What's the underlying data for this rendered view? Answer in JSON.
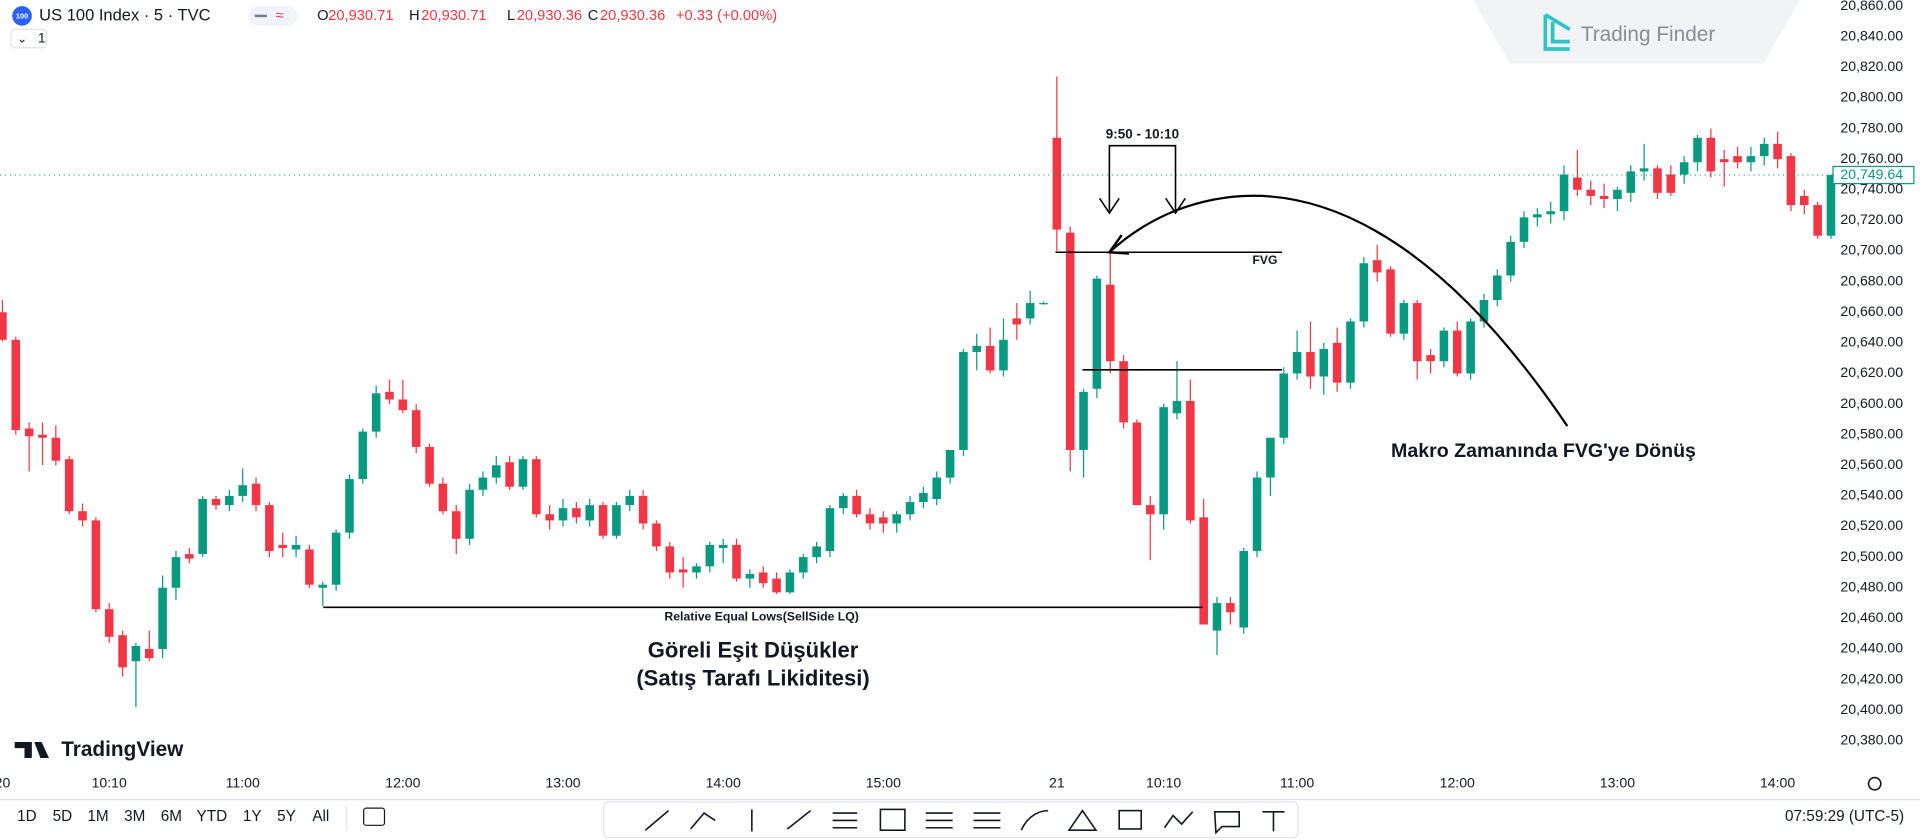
{
  "chart_data": {
    "type": "candlestick",
    "symbol": "US 100 Index · 5 · TVC",
    "interval": "1",
    "header": {
      "o_label": "O",
      "o": "20,930.71",
      "h_label": "H",
      "h": "20,930.71",
      "l_label": "L",
      "l": "20,930.36",
      "c_label": "C",
      "c": "20,930.36",
      "change": "+0.33 (+0.00%)"
    },
    "brand": "Trading Finder",
    "platform": "TradingView",
    "annotations": {
      "window": "9:50 - 10:10",
      "fvg": "FVG",
      "equal_lows": "Relative Equal Lows(SellSide LQ)",
      "equal_lows_tr_1": "Göreli Eşit Düşükler",
      "equal_lows_tr_2": "(Satış Tarafı Likiditesi)",
      "return": "Makro Zamanında FVG'ye Dönüş"
    },
    "ranges": [
      "1D",
      "5D",
      "1M",
      "3M",
      "6M",
      "YTD",
      "1Y",
      "5Y",
      "All"
    ],
    "clock": "07:59:29 (UTC-5)",
    "up_color": "#089981",
    "down_color": "#f23645",
    "grid": false,
    "last_price": {
      "value": 20749.64,
      "label": "20,749.64"
    },
    "ylim": [
      20364,
      20864
    ],
    "yticks": [
      {
        "value": 20860,
        "label": "20,860.00"
      },
      {
        "value": 20840,
        "label": "20,840.00"
      },
      {
        "value": 20820,
        "label": "20,820.00"
      },
      {
        "value": 20800,
        "label": "20,800.00"
      },
      {
        "value": 20780,
        "label": "20,780.00"
      },
      {
        "value": 20760,
        "label": "20,760.00"
      },
      {
        "value": 20740,
        "label": "20,740.00"
      },
      {
        "value": 20720,
        "label": "20,720.00"
      },
      {
        "value": 20700,
        "label": "20,700.00"
      },
      {
        "value": 20680,
        "label": "20,680.00"
      },
      {
        "value": 20660,
        "label": "20,660.00"
      },
      {
        "value": 20640,
        "label": "20,640.00"
      },
      {
        "value": 20620,
        "label": "20,620.00"
      },
      {
        "value": 20600,
        "label": "20,600.00"
      },
      {
        "value": 20580,
        "label": "20,580.00"
      },
      {
        "value": 20560,
        "label": "20,560.00"
      },
      {
        "value": 20540,
        "label": "20,540.00"
      },
      {
        "value": 20520,
        "label": "20,520.00"
      },
      {
        "value": 20500,
        "label": "20,500.00"
      },
      {
        "value": 20480,
        "label": "20,480.00"
      },
      {
        "value": 20460,
        "label": "20,460.00"
      },
      {
        "value": 20440,
        "label": "20,440.00"
      },
      {
        "value": 20420,
        "label": "20,420.00"
      },
      {
        "value": 20400,
        "label": "20,400.00"
      },
      {
        "value": 20380,
        "label": "20,380.00"
      }
    ],
    "categories": [
      "20",
      null,
      null,
      null,
      null,
      null,
      null,
      null,
      "10:10",
      null,
      null,
      null,
      null,
      null,
      null,
      null,
      null,
      null,
      "11:00",
      null,
      null,
      null,
      null,
      null,
      null,
      null,
      null,
      null,
      null,
      null,
      "12:00",
      null,
      null,
      null,
      null,
      null,
      null,
      null,
      null,
      null,
      null,
      null,
      "13:00",
      null,
      null,
      null,
      null,
      null,
      null,
      null,
      null,
      null,
      null,
      null,
      "14:00",
      null,
      null,
      null,
      null,
      null,
      null,
      null,
      null,
      null,
      null,
      null,
      "15:00",
      null,
      null,
      null,
      null,
      null,
      null,
      null,
      null,
      null,
      null,
      null,
      null,
      "21",
      null,
      null,
      null,
      null,
      null,
      null,
      null,
      "10:10",
      null,
      null,
      null,
      null,
      null,
      null,
      null,
      null,
      null,
      "11:00",
      null,
      null,
      null,
      null,
      null,
      null,
      null,
      null,
      null,
      null,
      null,
      "12:00",
      null,
      null,
      null,
      null,
      null,
      null,
      null,
      null,
      null,
      null,
      null,
      "13:00",
      null,
      null,
      null,
      null,
      null,
      null,
      null,
      null,
      null,
      null,
      null,
      "14:00",
      null,
      null,
      null,
      null
    ],
    "ohlc": [
      [
        20660,
        20668,
        20641,
        20642
      ],
      [
        20642,
        20644,
        20580,
        20583
      ],
      [
        20584,
        20588,
        20556,
        20579
      ],
      [
        20580,
        20588,
        20560,
        20578
      ],
      [
        20578,
        20586,
        20560,
        20563
      ],
      [
        20564,
        20566,
        20528,
        20530
      ],
      [
        20530,
        20535,
        20520,
        20524
      ],
      [
        20524,
        20526,
        20464,
        20466
      ],
      [
        20466,
        20470,
        20444,
        20448
      ],
      [
        20449,
        20452,
        20422,
        20428
      ],
      [
        20432,
        20444,
        20402,
        20442
      ],
      [
        20440,
        20452,
        20432,
        20434
      ],
      [
        20440,
        20488,
        20434,
        20480
      ],
      [
        20480,
        20504,
        20472,
        20500
      ],
      [
        20502,
        20506,
        20496,
        20499
      ],
      [
        20502,
        20540,
        20500,
        20538
      ],
      [
        20538,
        20540,
        20531,
        20534
      ],
      [
        20534,
        20544,
        20530,
        20540
      ],
      [
        20540,
        20558,
        20536,
        20547
      ],
      [
        20548,
        20552,
        20530,
        20534
      ],
      [
        20534,
        20536,
        20500,
        20504
      ],
      [
        20508,
        20516,
        20500,
        20506
      ],
      [
        20505,
        20514,
        20500,
        20508
      ],
      [
        20505,
        20508,
        20480,
        20482
      ],
      [
        20480,
        20484,
        20468,
        20482
      ],
      [
        20482,
        20518,
        20478,
        20516
      ],
      [
        20516,
        20554,
        20512,
        20551
      ],
      [
        20551,
        20584,
        20548,
        20582
      ],
      [
        20582,
        20612,
        20578,
        20607
      ],
      [
        20608,
        20616,
        20600,
        20603
      ],
      [
        20603,
        20616,
        20594,
        20596
      ],
      [
        20596,
        20600,
        20568,
        20572
      ],
      [
        20572,
        20574,
        20546,
        20548
      ],
      [
        20548,
        20552,
        20528,
        20530
      ],
      [
        20530,
        20534,
        20502,
        20512
      ],
      [
        20512,
        20548,
        20508,
        20544
      ],
      [
        20544,
        20556,
        20540,
        20552
      ],
      [
        20552,
        20566,
        20548,
        20560
      ],
      [
        20562,
        20566,
        20544,
        20546
      ],
      [
        20546,
        20566,
        20544,
        20564
      ],
      [
        20564,
        20566,
        20526,
        20528
      ],
      [
        20528,
        20534,
        20518,
        20524
      ],
      [
        20524,
        20538,
        20520,
        20532
      ],
      [
        20532,
        20536,
        20522,
        20526
      ],
      [
        20524,
        20538,
        20520,
        20534
      ],
      [
        20534,
        20536,
        20512,
        20514
      ],
      [
        20514,
        20536,
        20512,
        20534
      ],
      [
        20534,
        20544,
        20530,
        20540
      ],
      [
        20540,
        20544,
        20518,
        20522
      ],
      [
        20522,
        20524,
        20504,
        20507
      ],
      [
        20507,
        20510,
        20486,
        20490
      ],
      [
        20492,
        20500,
        20480,
        20490
      ],
      [
        20490,
        20496,
        20486,
        20494
      ],
      [
        20494,
        20510,
        20490,
        20508
      ],
      [
        20506,
        20512,
        20496,
        20508
      ],
      [
        20508,
        20512,
        20484,
        20486
      ],
      [
        20486,
        20492,
        20480,
        20489
      ],
      [
        20490,
        20494,
        20480,
        20483
      ],
      [
        20486,
        20490,
        20476,
        20477
      ],
      [
        20477,
        20492,
        20476,
        20490
      ],
      [
        20490,
        20502,
        20486,
        20500
      ],
      [
        20500,
        20510,
        20496,
        20507
      ],
      [
        20504,
        20534,
        20500,
        20532
      ],
      [
        20532,
        20542,
        20528,
        20540
      ],
      [
        20540,
        20544,
        20526,
        20528
      ],
      [
        20528,
        20532,
        20518,
        20522
      ],
      [
        20526,
        20530,
        20516,
        20522
      ],
      [
        20522,
        20530,
        20516,
        20528
      ],
      [
        20528,
        20540,
        20524,
        20536
      ],
      [
        20536,
        20546,
        20532,
        20542
      ],
      [
        20538,
        20556,
        20534,
        20552
      ],
      [
        20552,
        20570,
        20548,
        20570
      ],
      [
        20570,
        20636,
        20566,
        20634
      ],
      [
        20634,
        20646,
        20622,
        20638
      ],
      [
        20638,
        20650,
        20620,
        20622
      ],
      [
        20622,
        20656,
        20618,
        20642
      ],
      [
        20656,
        20666,
        20642,
        20652
      ],
      [
        20656,
        20674,
        20652,
        20666
      ],
      [
        20666,
        20667,
        20665,
        20666
      ],
      [
        20774,
        20814,
        20700,
        20714
      ],
      [
        20712,
        20716,
        20556,
        20570
      ],
      [
        20570,
        20610,
        20552,
        20608
      ],
      [
        20610,
        20684,
        20604,
        20682
      ],
      [
        20678,
        20700,
        20620,
        20628
      ],
      [
        20628,
        20632,
        20584,
        20588
      ],
      [
        20588,
        20590,
        20534,
        20534
      ],
      [
        20534,
        20540,
        20498,
        20528
      ],
      [
        20528,
        20600,
        20518,
        20598
      ],
      [
        20594,
        20628,
        20590,
        20602
      ],
      [
        20602,
        20616,
        20522,
        20524
      ],
      [
        20526,
        20538,
        20456,
        20456
      ],
      [
        20452,
        20474,
        20436,
        20470
      ],
      [
        20470,
        20474,
        20456,
        20464
      ],
      [
        20454,
        20506,
        20450,
        20504
      ],
      [
        20504,
        20556,
        20500,
        20552
      ],
      [
        20552,
        20578,
        20540,
        20578
      ],
      [
        20578,
        20624,
        20574,
        20620
      ],
      [
        20620,
        20648,
        20616,
        20634
      ],
      [
        20634,
        20654,
        20610,
        20618
      ],
      [
        20618,
        20640,
        20606,
        20636
      ],
      [
        20640,
        20650,
        20608,
        20614
      ],
      [
        20614,
        20656,
        20610,
        20654
      ],
      [
        20654,
        20696,
        20650,
        20692
      ],
      [
        20694,
        20704,
        20680,
        20686
      ],
      [
        20688,
        20690,
        20644,
        20646
      ],
      [
        20646,
        20668,
        20642,
        20666
      ],
      [
        20666,
        20668,
        20616,
        20628
      ],
      [
        20632,
        20636,
        20620,
        20628
      ],
      [
        20628,
        20650,
        20624,
        20648
      ],
      [
        20648,
        20654,
        20618,
        20620
      ],
      [
        20620,
        20656,
        20616,
        20654
      ],
      [
        20654,
        20672,
        20650,
        20668
      ],
      [
        20668,
        20688,
        20664,
        20684
      ],
      [
        20684,
        20710,
        20680,
        20706
      ],
      [
        20706,
        20726,
        20702,
        20722
      ],
      [
        20722,
        20728,
        20716,
        20724
      ],
      [
        20724,
        20732,
        20718,
        20726
      ],
      [
        20726,
        20756,
        20720,
        20750
      ],
      [
        20748,
        20766,
        20736,
        20740
      ],
      [
        20740,
        20746,
        20730,
        20736
      ],
      [
        20736,
        20744,
        20728,
        20734
      ],
      [
        20734,
        20742,
        20726,
        20740
      ],
      [
        20738,
        20756,
        20732,
        20752
      ],
      [
        20752,
        20770,
        20746,
        20754
      ],
      [
        20754,
        20756,
        20734,
        20738
      ],
      [
        20750,
        20756,
        20736,
        20738
      ],
      [
        20750,
        20762,
        20744,
        20758
      ],
      [
        20758,
        20776,
        20752,
        20774
      ],
      [
        20774,
        20780,
        20748,
        20752
      ],
      [
        20760,
        20766,
        20742,
        20758
      ],
      [
        20762,
        20768,
        20754,
        20758
      ],
      [
        20758,
        20768,
        20752,
        20762
      ],
      [
        20762,
        20774,
        20756,
        20770
      ],
      [
        20770,
        20778,
        20754,
        20760
      ],
      [
        20762,
        20764,
        20726,
        20730
      ],
      [
        20736,
        20740,
        20724,
        20730
      ],
      [
        20730,
        20732,
        20708,
        20710
      ],
      [
        20710,
        20750,
        20708,
        20749.64
      ]
    ]
  }
}
